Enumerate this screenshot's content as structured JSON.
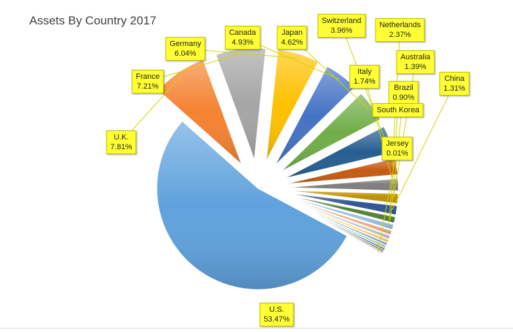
{
  "chart_data": {
    "type": "pie",
    "title": "Assets By Country 2017",
    "slices": [
      {
        "label": "U.S.",
        "value": 53.47,
        "display": "53.47%",
        "color": "#5fa2dd"
      },
      {
        "label": "U.K.",
        "value": 7.81,
        "display": "7.81%",
        "color": "#f58230"
      },
      {
        "label": "France",
        "value": 7.21,
        "display": "7.21%",
        "color": "#a5a5a5"
      },
      {
        "label": "Germany",
        "value": 6.04,
        "display": "6.04%",
        "color": "#ffc000"
      },
      {
        "label": "Canada",
        "value": 4.93,
        "display": "4.93%",
        "color": "#4472c4"
      },
      {
        "label": "Japan",
        "value": 4.62,
        "display": "4.62%",
        "color": "#70ad47"
      },
      {
        "label": "Switzerland",
        "value": 3.96,
        "display": "3.96%",
        "color": "#255e91"
      },
      {
        "label": "Netherlands",
        "value": 2.37,
        "display": "2.37%",
        "color": "#c55a11"
      },
      {
        "label": "Italy",
        "value": 1.74,
        "display": "1.74%",
        "color": "#7f7f7f"
      },
      {
        "label": "Australia",
        "value": 1.39,
        "display": "1.39%",
        "color": "#bf9000"
      },
      {
        "label": "China",
        "value": 1.31,
        "display": "1.31%",
        "color": "#2f5597"
      },
      {
        "label": "Brazil",
        "value": 0.9,
        "display": "0.90%",
        "color": "#548235"
      },
      {
        "label": "South Korea",
        "value": 0.75,
        "display": "",
        "color": "#9dc3e6"
      },
      {
        "label": "",
        "value": 0.6,
        "display": "",
        "color": "#f4b183"
      },
      {
        "label": "",
        "value": 0.5,
        "display": "",
        "color": "#c9c9c9"
      },
      {
        "label": "",
        "value": 0.4,
        "display": "",
        "color": "#ffd966"
      },
      {
        "label": "",
        "value": 0.35,
        "display": "",
        "color": "#8faadc"
      },
      {
        "label": "",
        "value": 0.3,
        "display": "",
        "color": "#a9d18e"
      },
      {
        "label": "",
        "value": 0.25,
        "display": "",
        "color": "#2e75b6"
      },
      {
        "label": "",
        "value": 0.2,
        "display": "",
        "color": "#843c0c"
      },
      {
        "label": "",
        "value": 0.15,
        "display": "",
        "color": "#595959"
      },
      {
        "label": "",
        "value": 0.1,
        "display": "",
        "color": "#806000"
      },
      {
        "label": "",
        "value": 0.08,
        "display": "",
        "color": "#1f3864"
      },
      {
        "label": "Jersey",
        "value": 0.01,
        "display": "0.01%",
        "color": "#375623"
      }
    ]
  }
}
